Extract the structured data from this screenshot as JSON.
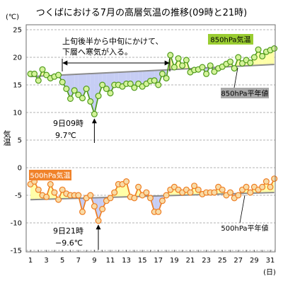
{
  "chart_data": {
    "type": "line",
    "title": "つくばにおける7月の高層気温の推移(09時と21時)",
    "yunit": "(℃)",
    "ylabel": "気温",
    "xunit": "(日)",
    "ylim": [
      -15,
      25
    ],
    "xlim": [
      1,
      31.5
    ],
    "yticks": [
      25,
      20,
      15,
      10,
      5,
      0,
      -5,
      -10,
      -15
    ],
    "xticks": [
      1,
      3,
      5,
      7,
      9,
      11,
      13,
      15,
      17,
      19,
      21,
      23,
      25,
      27,
      29,
      31
    ],
    "grid": true,
    "x": [
      1,
      1.5,
      2,
      2.5,
      3,
      3.5,
      4,
      4.5,
      5,
      5.5,
      6,
      6.5,
      7,
      7.5,
      8,
      8.5,
      9,
      9.5,
      10,
      10.5,
      11,
      11.5,
      12,
      12.5,
      13,
      13.5,
      14,
      14.5,
      15,
      15.5,
      16,
      16.5,
      17,
      17.5,
      18,
      18.5,
      19,
      19.5,
      20,
      20.5,
      21,
      21.5,
      22,
      22.5,
      23,
      23.5,
      24,
      24.5,
      25,
      25.5,
      26,
      26.5,
      27,
      27.5,
      28,
      28.5,
      29,
      29.5,
      30,
      30.5,
      31,
      31.5
    ],
    "series": [
      {
        "name": "850hPa気温",
        "values": [
          17.0,
          17.0,
          15.8,
          17.8,
          16.8,
          16.2,
          16.5,
          16.8,
          15.5,
          14.3,
          12.5,
          14.0,
          13.2,
          12.6,
          14.3,
          12.0,
          9.7,
          13.0,
          15.0,
          14.3,
          13.5,
          15.0,
          15.0,
          14.7,
          15.2,
          15.2,
          14.5,
          15.2,
          14.7,
          15.2,
          15.7,
          15.8,
          15.0,
          17.0,
          16.2,
          20.4,
          18.2,
          19.8,
          18.5,
          19.5,
          17.3,
          17.7,
          17.8,
          18.2,
          17.0,
          18.5,
          17.4,
          18.0,
          18.3,
          18.8,
          19.2,
          18.0,
          20.0,
          18.9,
          19.5,
          19.0,
          20.0,
          21.4,
          20.2,
          21.0,
          21.3,
          21.6
        ],
        "normal_name": "850hPa平年値",
        "normal": {
          "x": [
            1,
            31.5
          ],
          "values": [
            16.5,
            18.7
          ]
        },
        "color": "#4f9a1b",
        "marker_fill": "#d4f39a",
        "label_color": "#9acd32",
        "label_text_color": "#000000"
      },
      {
        "name": "500hPa気温",
        "values": [
          -3.0,
          -2.5,
          -4.0,
          -5.0,
          -5.3,
          -3.0,
          -4.5,
          -5.8,
          -4.0,
          -4.7,
          -5.0,
          -5.0,
          -5.0,
          -8.0,
          -5.5,
          -5.0,
          -7.0,
          -9.6,
          -7.5,
          -6.0,
          -5.5,
          -4.5,
          -3.0,
          -3.0,
          -2.5,
          -5.3,
          -5.5,
          -3.5,
          -5.0,
          -4.5,
          -5.5,
          -8.0,
          -8.0,
          -6.0,
          -5.0,
          -4.0,
          -3.5,
          -4.0,
          -4.5,
          -4.0,
          -4.5,
          -3.3,
          -4.0,
          -4.8,
          -4.5,
          -4.5,
          -4.5,
          -3.5,
          -4.0,
          -5.0,
          -4.5,
          -5.5,
          -5.0,
          -4.0,
          -3.5,
          -4.5,
          -3.5,
          -4.0,
          -3.5,
          -2.5,
          -3.5,
          -2.0
        ],
        "normal_name": "500hPa平年値",
        "normal": {
          "x": [
            1,
            31.5
          ],
          "values": [
            -5.8,
            -4.5
          ]
        },
        "color": "#ee7d22",
        "marker_fill": "#f8dba6",
        "label_color": "#f0822a",
        "label_text_color": "#ffffff"
      }
    ],
    "normal_color": "#8c8c8c",
    "normal_label_color": "#a8a8a8",
    "fill_colors": {
      "below_normal": "#c6cdf4",
      "above_normal": "#ffffa8"
    },
    "annotations": {
      "cold_intrusion": [
        "上旬後半から中旬にかけて、",
        "下層へ寒気が入る。"
      ],
      "min_850": {
        "time": "9日09時",
        "value": "9.7℃"
      },
      "min_500": {
        "time": "9日21時",
        "value": "−9.6℃"
      }
    }
  }
}
